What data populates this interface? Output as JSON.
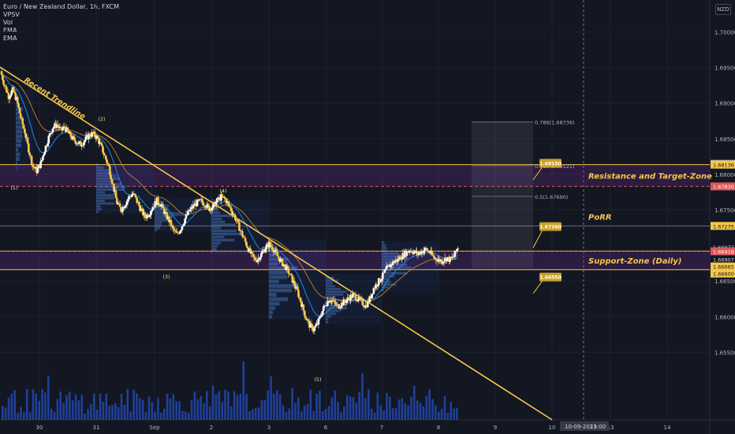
{
  "legend": {
    "symbol_line": "Euro / New Zealand Dollar, 1h, FXCM",
    "indicators": [
      "VPSV",
      "Vol",
      "EMA",
      "EMA"
    ]
  },
  "currency_badge": "NZD",
  "chart_data": {
    "type": "candlestick",
    "title": "Euro / New Zealand Dollar, 1h, FXCM",
    "ylim": [
      1.6455,
      1.7045
    ],
    "y_ticks": [
      "1.70000",
      "1.69500",
      "1.69000",
      "1.68500",
      "1.68000",
      "1.67500",
      "1.66500",
      "1.66000",
      "1.65500"
    ],
    "x_ticks": [
      "30",
      "31",
      "Sep",
      "2",
      "3",
      "6",
      "7",
      "8",
      "9",
      "10",
      "13",
      "14"
    ],
    "x_date_badge": "10-09-2021",
    "x_time_badge": "13:00",
    "price_axis_labels": [
      {
        "text": "1.68147",
        "price": 1.68147,
        "style": "grey"
      },
      {
        "text": "1.68136",
        "price": 1.68136,
        "style": "gold"
      },
      {
        "text": "1.67830",
        "price": 1.6783,
        "style": "red"
      },
      {
        "text": "1.67275",
        "price": 1.67275,
        "style": "gold"
      },
      {
        "text": "1.66977",
        "price": 1.66977,
        "style": "plain"
      },
      {
        "text": "46:05",
        "price": 1.6689,
        "style": "plain"
      },
      {
        "text": "1.66918",
        "price": 1.66918,
        "style": "red"
      },
      {
        "text": "1.66907",
        "price": 1.66807,
        "style": "plain"
      },
      {
        "text": "1.66665",
        "price": 1.66705,
        "style": "gold"
      },
      {
        "text": "1.66600",
        "price": 1.66605,
        "style": "gold"
      }
    ],
    "zones": [
      {
        "label": "Resistance and Target-Zone",
        "from": 1.6783,
        "to": 1.68136
      },
      {
        "label": "Support-Zone (Daily)",
        "from": 1.6666,
        "to": 1.6692
      }
    ],
    "horizontal_levels": [
      {
        "label": "PoRR",
        "price": 1.67275
      }
    ],
    "fib_levels": [
      {
        "label": "0.786(1.68736)",
        "price": 1.68736
      },
      {
        "label": "0.618(1.68121)",
        "price": 1.68121
      },
      {
        "label": "0.5(1.67690)",
        "price": 1.6769
      }
    ],
    "callouts": [
      {
        "text": "1.68150",
        "price": 1.6815
      },
      {
        "text": "1.67260",
        "price": 1.6726
      },
      {
        "text": "1.66550",
        "price": 1.6655
      }
    ],
    "trendline": {
      "label": "Recent Trendline"
    },
    "wave_labels": [
      "(1)",
      "(2)",
      "(3)",
      "(4)",
      "(5)"
    ],
    "price_path": [
      1.6945,
      1.6925,
      1.691,
      1.6918,
      1.6905,
      1.688,
      1.686,
      1.6835,
      1.6812,
      1.6805,
      1.6815,
      1.6835,
      1.6852,
      1.6866,
      1.687,
      1.6862,
      1.6866,
      1.6857,
      1.685,
      1.6845,
      1.6842,
      1.6848,
      1.6855,
      1.6857,
      1.6852,
      1.684,
      1.6825,
      1.681,
      1.6785,
      1.676,
      1.675,
      1.6758,
      1.6768,
      1.6773,
      1.6762,
      1.675,
      1.674,
      1.6745,
      1.6755,
      1.6763,
      1.6757,
      1.6745,
      1.6735,
      1.6722,
      1.6715,
      1.6725,
      1.6738,
      1.6748,
      1.6755,
      1.676,
      1.6762,
      1.6758,
      1.6752,
      1.6755,
      1.6763,
      1.6768,
      1.6765,
      1.6755,
      1.6745,
      1.6732,
      1.6718,
      1.6705,
      1.6692,
      1.6682,
      1.668,
      1.6688,
      1.6697,
      1.6702,
      1.6695,
      1.6685,
      1.6677,
      1.667,
      1.666,
      1.6648,
      1.6635,
      1.6618,
      1.66,
      1.6588,
      1.6582,
      1.659,
      1.6605,
      1.6618,
      1.6625,
      1.662,
      1.6615,
      1.6618,
      1.6622,
      1.6627,
      1.663,
      1.6625,
      1.662,
      1.6615,
      1.6625,
      1.664,
      1.6648,
      1.6655,
      1.6665,
      1.6672,
      1.6677,
      1.668,
      1.6685,
      1.669,
      1.6694,
      1.6691,
      1.6688,
      1.6692,
      1.6695,
      1.669,
      1.6683,
      1.668,
      1.6678,
      1.6682,
      1.668,
      1.6685,
      1.6698
    ],
    "volume_bars": 150
  }
}
